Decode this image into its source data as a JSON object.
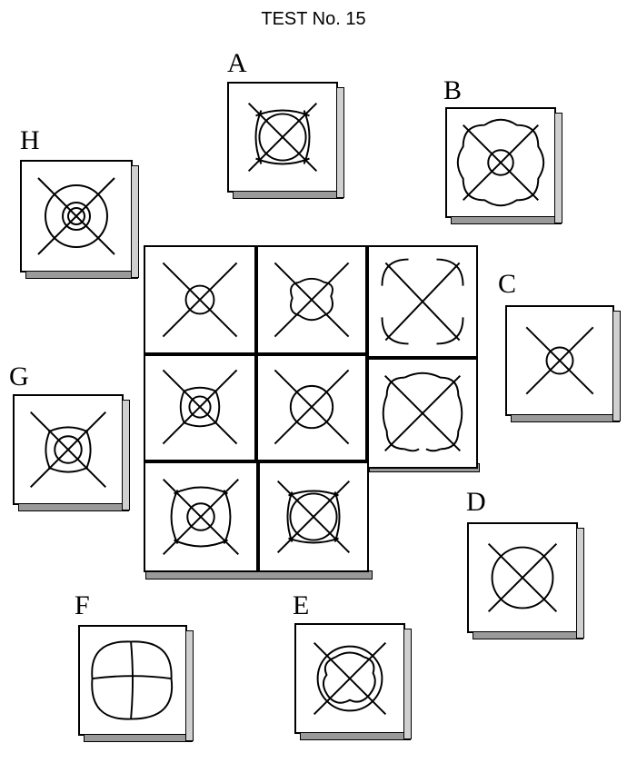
{
  "title": "TEST No. 15",
  "options": [
    {
      "label": "A"
    },
    {
      "label": "B"
    },
    {
      "label": "C"
    },
    {
      "label": "D"
    },
    {
      "label": "E"
    },
    {
      "label": "F"
    },
    {
      "label": "G"
    },
    {
      "label": "H"
    }
  ]
}
